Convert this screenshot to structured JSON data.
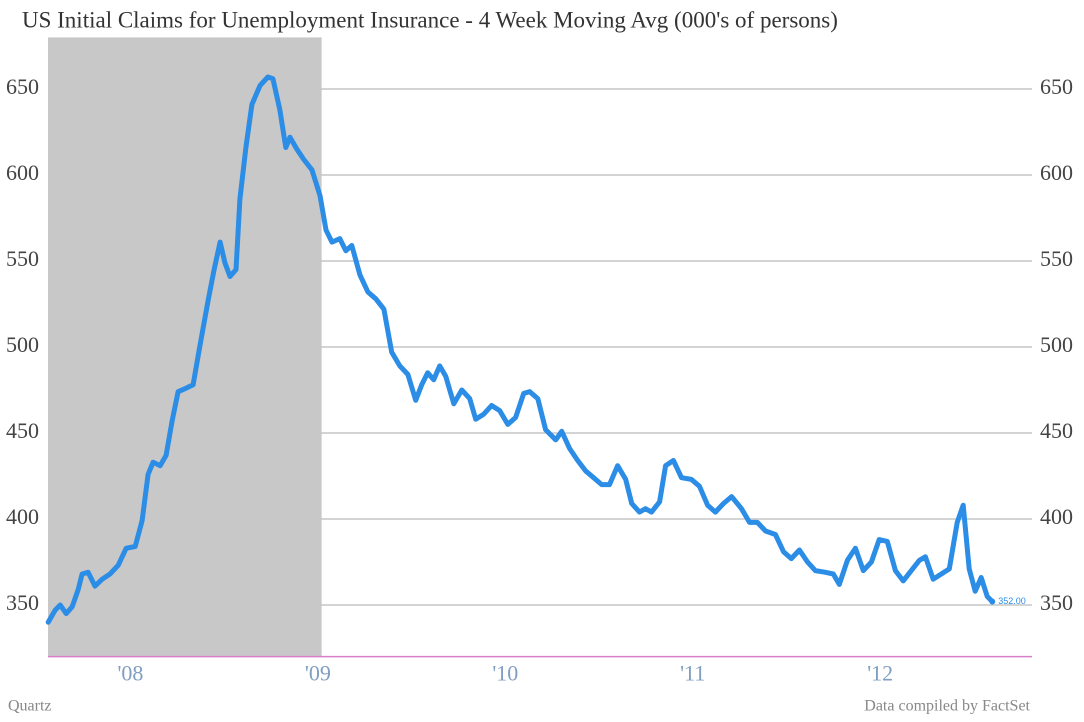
{
  "chart_data": {
    "type": "line",
    "title": "US Initial Claims for Unemployment Insurance - 4 Week Moving Avg (000's of persons)",
    "source_left": "Quartz",
    "source_right": "Data compiled by FactSet",
    "x": [
      2008.061,
      2008.098,
      2008.125,
      2008.157,
      2008.189,
      2008.221,
      2008.242,
      2008.274,
      2008.311,
      2008.349,
      2008.391,
      2008.434,
      2008.477,
      2008.525,
      2008.562,
      2008.594,
      2008.621,
      2008.658,
      2008.69,
      2008.722,
      2008.754,
      2008.796,
      2008.834,
      2008.871,
      2008.914,
      2008.946,
      2008.978,
      2009.004,
      2009.031,
      2009.063,
      2009.084,
      2009.116,
      2009.148,
      2009.191,
      2009.233,
      2009.26,
      2009.297,
      2009.329,
      2009.351,
      2009.388,
      2009.425,
      2009.468,
      2009.511,
      2009.543,
      2009.575,
      2009.617,
      2009.649,
      2009.681,
      2009.724,
      2009.767,
      2009.809,
      2009.852,
      2009.894,
      2009.937,
      2009.98,
      2010.022,
      2010.054,
      2010.086,
      2010.118,
      2010.15,
      2010.182,
      2010.225,
      2010.268,
      2010.31,
      2010.342,
      2010.385,
      2010.427,
      2010.47,
      2010.513,
      2010.555,
      2010.598,
      2010.63,
      2010.673,
      2010.715,
      2010.769,
      2010.801,
      2010.843,
      2010.886,
      2010.928,
      2010.971,
      2011.014,
      2011.056,
      2011.099,
      2011.142,
      2011.174,
      2011.216,
      2011.248,
      2011.28,
      2011.323,
      2011.355,
      2011.397,
      2011.44,
      2011.493,
      2011.536,
      2011.579,
      2011.621,
      2011.664,
      2011.707,
      2011.76,
      2011.803,
      2011.845,
      2011.888,
      2011.941,
      2011.984,
      2012.026,
      2012.069,
      2012.112,
      2012.154,
      2012.208,
      2012.25,
      2012.282,
      2012.325,
      2012.368,
      2012.41,
      2012.453,
      2012.495,
      2012.538,
      2012.581,
      2012.623,
      2012.666,
      2012.709,
      2012.741,
      2012.783,
      2012.826,
      2012.869,
      2012.911,
      2012.943,
      2012.975,
      2013.007,
      2013.039,
      2013.071,
      2013.098
    ],
    "series": [
      {
        "color": "#2b8de6",
        "end_label": "352.00",
        "values": [
          340,
          347,
          350,
          345,
          349,
          359,
          368,
          369,
          361,
          365,
          368,
          373,
          383,
          384,
          399,
          426,
          433,
          431,
          437,
          457,
          474,
          476,
          478,
          501,
          527,
          545,
          561,
          549,
          541,
          545,
          586,
          616,
          641,
          652,
          657,
          656,
          638,
          616,
          622,
          615,
          609,
          603,
          588,
          568,
          561,
          563,
          556,
          559,
          542,
          532,
          528,
          522,
          497,
          489,
          484,
          469,
          478,
          485,
          481,
          489,
          483,
          467,
          475,
          470,
          458,
          461,
          466,
          463,
          455,
          459,
          473,
          474,
          470,
          452,
          446,
          451,
          441,
          434,
          428,
          424,
          420,
          420,
          431,
          423,
          409,
          404,
          406,
          404,
          410,
          431,
          434,
          424,
          423,
          419,
          408,
          404,
          409,
          413,
          406,
          398,
          398,
          393,
          391,
          381,
          377,
          382,
          375,
          370,
          369,
          368,
          362,
          376,
          383,
          370,
          375,
          388,
          387,
          370,
          364,
          370,
          376,
          378,
          365,
          368,
          371,
          398,
          408,
          371,
          358,
          366,
          355,
          352
        ]
      }
    ],
    "xlim": [
      2008.06,
      2013.31
    ],
    "xticks": [
      {
        "value": 2008.5,
        "label": "'08"
      },
      {
        "value": 2009.5,
        "label": "'09"
      },
      {
        "value": 2010.5,
        "label": "'10"
      },
      {
        "value": 2011.5,
        "label": "'11"
      },
      {
        "value": 2012.5,
        "label": "'12"
      }
    ],
    "ylim": [
      320,
      680
    ],
    "yticks": [
      350,
      400,
      450,
      500,
      550,
      600,
      650
    ],
    "grid": true,
    "shaded_region": [
      2008.06,
      2009.52
    ],
    "shade_color": "#c8c8c8"
  }
}
